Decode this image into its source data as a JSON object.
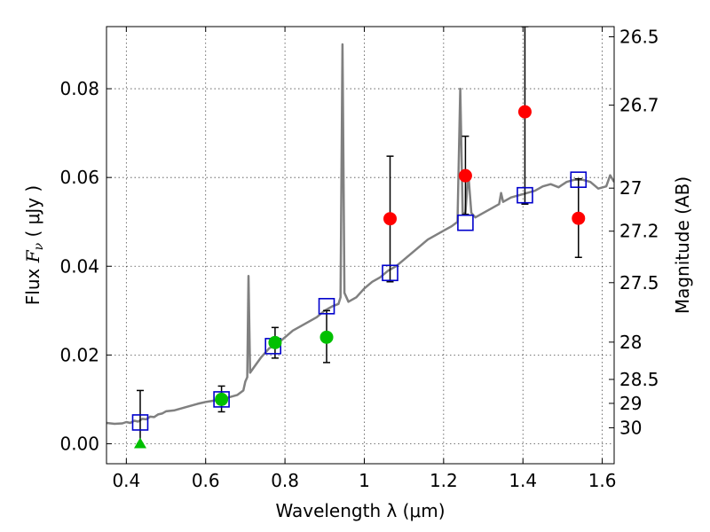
{
  "chart_data": {
    "type": "scatter",
    "xlabel": "Wavelength  λ (μm)",
    "ylabel": "Flux  F_ν  ( μJy )",
    "ylabel_parts": {
      "prefix": "Flux  ",
      "symbol": "F",
      "subscript": "ν",
      "suffix": "  ( μJy )"
    },
    "y2label": "Magnitude (AB)",
    "xlim": [
      0.35,
      1.63
    ],
    "ylim": [
      -0.0045,
      0.094
    ],
    "grid": true,
    "x_ticks": [
      {
        "value": 0.4,
        "label": "0.4"
      },
      {
        "value": 0.6,
        "label": "0.6"
      },
      {
        "value": 0.8,
        "label": "0.8"
      },
      {
        "value": 1.0,
        "label": "1"
      },
      {
        "value": 1.2,
        "label": "1.2"
      },
      {
        "value": 1.4,
        "label": "1.4"
      },
      {
        "value": 1.6,
        "label": "1.6"
      }
    ],
    "y_ticks": [
      {
        "value": 0.0,
        "label": "0.00"
      },
      {
        "value": 0.02,
        "label": "0.02"
      },
      {
        "value": 0.04,
        "label": "0.04"
      },
      {
        "value": 0.06,
        "label": "0.06"
      },
      {
        "value": 0.08,
        "label": "0.08"
      }
    ],
    "magnitude_ticks": [
      {
        "value": 0.0917,
        "label": "26.5"
      },
      {
        "value": 0.0763,
        "label": "26.7"
      },
      {
        "value": 0.0576,
        "label": "27"
      },
      {
        "value": 0.0479,
        "label": "27.2"
      },
      {
        "value": 0.0363,
        "label": "27.5"
      },
      {
        "value": 0.0229,
        "label": "28"
      },
      {
        "value": 0.0145,
        "label": "28.5"
      },
      {
        "value": 0.0091,
        "label": "29"
      },
      {
        "value": 0.0036,
        "label": "30"
      }
    ],
    "model_spectrum": {
      "color": "#808080",
      "points": [
        [
          0.35,
          0.0047
        ],
        [
          0.37,
          0.0045
        ],
        [
          0.39,
          0.0046
        ],
        [
          0.4,
          0.0049
        ],
        [
          0.41,
          0.0047
        ],
        [
          0.42,
          0.0052
        ],
        [
          0.43,
          0.005
        ],
        [
          0.44,
          0.0056
        ],
        [
          0.45,
          0.0055
        ],
        [
          0.46,
          0.0061
        ],
        [
          0.47,
          0.006
        ],
        [
          0.48,
          0.0066
        ],
        [
          0.49,
          0.0068
        ],
        [
          0.5,
          0.0073
        ],
        [
          0.52,
          0.0075
        ],
        [
          0.54,
          0.008
        ],
        [
          0.56,
          0.0085
        ],
        [
          0.58,
          0.009
        ],
        [
          0.6,
          0.0094
        ],
        [
          0.62,
          0.0097
        ],
        [
          0.64,
          0.01
        ],
        [
          0.66,
          0.0105
        ],
        [
          0.68,
          0.011
        ],
        [
          0.695,
          0.012
        ],
        [
          0.7,
          0.014
        ],
        [
          0.705,
          0.015
        ],
        [
          0.708,
          0.0378
        ],
        [
          0.712,
          0.016
        ],
        [
          0.72,
          0.017
        ],
        [
          0.74,
          0.0195
        ],
        [
          0.76,
          0.0215
        ],
        [
          0.78,
          0.0225
        ],
        [
          0.8,
          0.024
        ],
        [
          0.82,
          0.0255
        ],
        [
          0.84,
          0.0265
        ],
        [
          0.86,
          0.0275
        ],
        [
          0.88,
          0.0285
        ],
        [
          0.9,
          0.03
        ],
        [
          0.92,
          0.031
        ],
        [
          0.935,
          0.0315
        ],
        [
          0.94,
          0.033
        ],
        [
          0.945,
          0.09
        ],
        [
          0.95,
          0.034
        ],
        [
          0.96,
          0.032
        ],
        [
          0.98,
          0.033
        ],
        [
          1.0,
          0.035
        ],
        [
          1.02,
          0.0365
        ],
        [
          1.04,
          0.0375
        ],
        [
          1.06,
          0.039
        ],
        [
          1.08,
          0.04
        ],
        [
          1.1,
          0.0415
        ],
        [
          1.12,
          0.043
        ],
        [
          1.14,
          0.0445
        ],
        [
          1.16,
          0.046
        ],
        [
          1.18,
          0.047
        ],
        [
          1.2,
          0.048
        ],
        [
          1.22,
          0.049
        ],
        [
          1.235,
          0.05
        ],
        [
          1.242,
          0.08
        ],
        [
          1.248,
          0.052
        ],
        [
          1.255,
          0.052
        ],
        [
          1.262,
          0.061
        ],
        [
          1.27,
          0.052
        ],
        [
          1.28,
          0.051
        ],
        [
          1.3,
          0.052
        ],
        [
          1.32,
          0.053
        ],
        [
          1.34,
          0.054
        ],
        [
          1.345,
          0.0565
        ],
        [
          1.35,
          0.0545
        ],
        [
          1.37,
          0.0555
        ],
        [
          1.39,
          0.056
        ],
        [
          1.41,
          0.0565
        ],
        [
          1.43,
          0.057
        ],
        [
          1.45,
          0.058
        ],
        [
          1.47,
          0.0585
        ],
        [
          1.49,
          0.0578
        ],
        [
          1.51,
          0.059
        ],
        [
          1.53,
          0.0595
        ],
        [
          1.55,
          0.0595
        ],
        [
          1.57,
          0.059
        ],
        [
          1.59,
          0.0575
        ],
        [
          1.61,
          0.058
        ],
        [
          1.62,
          0.0605
        ],
        [
          1.63,
          0.059
        ]
      ]
    },
    "series": [
      {
        "marker": "square-open",
        "color": "#0000cc",
        "points": [
          {
            "x": 0.435,
            "y": 0.0048
          },
          {
            "x": 0.64,
            "y": 0.01
          },
          {
            "x": 0.77,
            "y": 0.022
          },
          {
            "x": 0.905,
            "y": 0.031
          },
          {
            "x": 1.065,
            "y": 0.0385
          },
          {
            "x": 1.255,
            "y": 0.0498
          },
          {
            "x": 1.405,
            "y": 0.056
          },
          {
            "x": 1.54,
            "y": 0.0595
          }
        ]
      },
      {
        "marker": "circle",
        "color": "#00c000",
        "points": [
          {
            "x": 0.64,
            "y": 0.01,
            "ylo": 0.0072,
            "yhi": 0.013
          },
          {
            "x": 0.775,
            "y": 0.0228,
            "ylo": 0.0193,
            "yhi": 0.0262
          },
          {
            "x": 0.905,
            "y": 0.024,
            "ylo": 0.0183,
            "yhi": 0.03
          }
        ]
      },
      {
        "marker": "circle",
        "color": "#ff0000",
        "points": [
          {
            "x": 1.065,
            "y": 0.0507,
            "ylo": 0.0365,
            "yhi": 0.0648
          },
          {
            "x": 1.255,
            "y": 0.0604,
            "ylo": 0.0517,
            "yhi": 0.0693
          },
          {
            "x": 1.405,
            "y": 0.0748,
            "ylo": 0.054,
            "yhi": 0.094
          },
          {
            "x": 1.54,
            "y": 0.0508,
            "ylo": 0.042,
            "yhi": 0.0597
          }
        ]
      },
      {
        "marker": "triangle-up",
        "color": "#00c000",
        "points": [
          {
            "x": 0.435,
            "y": 0.0,
            "ylo": 0.0,
            "yhi": 0.012
          }
        ]
      }
    ]
  }
}
